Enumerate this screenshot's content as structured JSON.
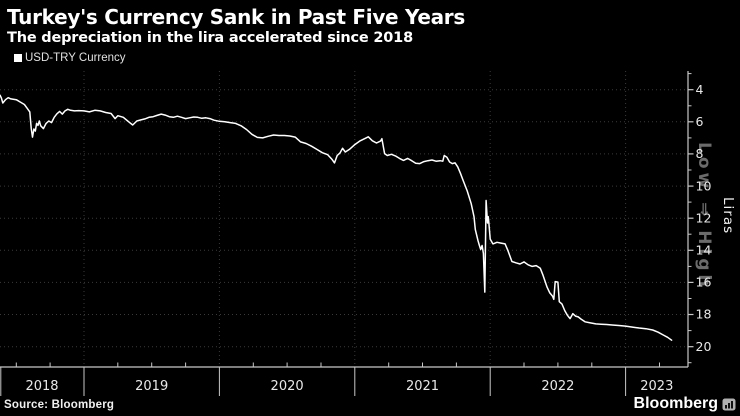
{
  "chart_data": {
    "type": "line",
    "title": "Turkey's Currency Sank in Past Five Years",
    "subtitle": "The depreciation in the lira accelerated since 2018",
    "grid": true,
    "legend_position": "top-left",
    "x_axis": {
      "year_labels": [
        "2018",
        "2019",
        "2020",
        "2021",
        "2022",
        "2023"
      ],
      "year_boundaries": [
        2019,
        2020,
        2021,
        2022,
        2023
      ],
      "range": [
        2018.38,
        2023.42
      ],
      "minor_tick_interval_years": 0.25
    },
    "y_axis": {
      "side": "right",
      "inverted": true,
      "unit": "Liras",
      "major_ticks": [
        4,
        6,
        8,
        10,
        12,
        14,
        16,
        18,
        20
      ],
      "minor_ticks": [
        3,
        5,
        7,
        9,
        11,
        13,
        15,
        17,
        19,
        21
      ],
      "display_range": [
        3,
        21.3
      ]
    },
    "series": [
      {
        "name": "USD-TRY Currency",
        "color": "#ffffff",
        "points": [
          [
            2018.38,
            4.35
          ],
          [
            2018.39,
            4.52
          ],
          [
            2018.4,
            4.83
          ],
          [
            2018.42,
            4.62
          ],
          [
            2018.44,
            4.5
          ],
          [
            2018.46,
            4.57
          ],
          [
            2018.5,
            4.62
          ],
          [
            2018.53,
            4.77
          ],
          [
            2018.56,
            4.92
          ],
          [
            2018.58,
            5.15
          ],
          [
            2018.6,
            5.38
          ],
          [
            2018.61,
            6.4
          ],
          [
            2018.62,
            6.95
          ],
          [
            2018.63,
            6.45
          ],
          [
            2018.64,
            6.58
          ],
          [
            2018.65,
            6.1
          ],
          [
            2018.66,
            6.22
          ],
          [
            2018.67,
            5.95
          ],
          [
            2018.68,
            6.25
          ],
          [
            2018.7,
            6.42
          ],
          [
            2018.72,
            6.1
          ],
          [
            2018.74,
            5.95
          ],
          [
            2018.76,
            6.05
          ],
          [
            2018.78,
            5.72
          ],
          [
            2018.8,
            5.5
          ],
          [
            2018.82,
            5.35
          ],
          [
            2018.84,
            5.52
          ],
          [
            2018.86,
            5.32
          ],
          [
            2018.88,
            5.22
          ],
          [
            2018.9,
            5.28
          ],
          [
            2018.93,
            5.32
          ],
          [
            2018.96,
            5.3
          ],
          [
            2019.0,
            5.32
          ],
          [
            2019.04,
            5.38
          ],
          [
            2019.08,
            5.28
          ],
          [
            2019.12,
            5.32
          ],
          [
            2019.16,
            5.42
          ],
          [
            2019.2,
            5.48
          ],
          [
            2019.23,
            5.8
          ],
          [
            2019.25,
            5.62
          ],
          [
            2019.29,
            5.72
          ],
          [
            2019.33,
            6.0
          ],
          [
            2019.36,
            6.2
          ],
          [
            2019.39,
            5.95
          ],
          [
            2019.42,
            5.88
          ],
          [
            2019.45,
            5.82
          ],
          [
            2019.48,
            5.72
          ],
          [
            2019.51,
            5.68
          ],
          [
            2019.54,
            5.6
          ],
          [
            2019.57,
            5.52
          ],
          [
            2019.6,
            5.58
          ],
          [
            2019.63,
            5.68
          ],
          [
            2019.66,
            5.72
          ],
          [
            2019.69,
            5.65
          ],
          [
            2019.72,
            5.72
          ],
          [
            2019.75,
            5.8
          ],
          [
            2019.78,
            5.75
          ],
          [
            2019.81,
            5.7
          ],
          [
            2019.84,
            5.72
          ],
          [
            2019.87,
            5.78
          ],
          [
            2019.9,
            5.75
          ],
          [
            2019.93,
            5.8
          ],
          [
            2019.96,
            5.9
          ],
          [
            2020.0,
            5.97
          ],
          [
            2020.04,
            6.0
          ],
          [
            2020.08,
            6.05
          ],
          [
            2020.12,
            6.1
          ],
          [
            2020.16,
            6.25
          ],
          [
            2020.2,
            6.48
          ],
          [
            2020.24,
            6.78
          ],
          [
            2020.28,
            6.97
          ],
          [
            2020.32,
            7.0
          ],
          [
            2020.36,
            6.9
          ],
          [
            2020.4,
            6.82
          ],
          [
            2020.44,
            6.85
          ],
          [
            2020.48,
            6.85
          ],
          [
            2020.52,
            6.88
          ],
          [
            2020.56,
            6.95
          ],
          [
            2020.6,
            7.25
          ],
          [
            2020.64,
            7.35
          ],
          [
            2020.68,
            7.52
          ],
          [
            2020.72,
            7.72
          ],
          [
            2020.76,
            7.92
          ],
          [
            2020.8,
            8.05
          ],
          [
            2020.83,
            8.32
          ],
          [
            2020.85,
            8.56
          ],
          [
            2020.87,
            8.1
          ],
          [
            2020.89,
            7.95
          ],
          [
            2020.91,
            7.65
          ],
          [
            2020.93,
            7.88
          ],
          [
            2020.96,
            7.72
          ],
          [
            2021.0,
            7.42
          ],
          [
            2021.04,
            7.18
          ],
          [
            2021.08,
            7.02
          ],
          [
            2021.1,
            6.93
          ],
          [
            2021.13,
            7.18
          ],
          [
            2021.16,
            7.32
          ],
          [
            2021.19,
            7.2
          ],
          [
            2021.2,
            7.05
          ],
          [
            2021.22,
            7.98
          ],
          [
            2021.24,
            8.1
          ],
          [
            2021.27,
            8.02
          ],
          [
            2021.3,
            8.12
          ],
          [
            2021.33,
            8.28
          ],
          [
            2021.36,
            8.4
          ],
          [
            2021.39,
            8.28
          ],
          [
            2021.42,
            8.42
          ],
          [
            2021.45,
            8.58
          ],
          [
            2021.48,
            8.6
          ],
          [
            2021.51,
            8.48
          ],
          [
            2021.54,
            8.42
          ],
          [
            2021.57,
            8.38
          ],
          [
            2021.6,
            8.45
          ],
          [
            2021.63,
            8.42
          ],
          [
            2021.65,
            8.45
          ],
          [
            2021.66,
            8.1
          ],
          [
            2021.68,
            8.2
          ],
          [
            2021.7,
            8.5
          ],
          [
            2021.72,
            8.6
          ],
          [
            2021.74,
            8.55
          ],
          [
            2021.76,
            8.8
          ],
          [
            2021.78,
            9.2
          ],
          [
            2021.8,
            9.65
          ],
          [
            2021.83,
            10.3
          ],
          [
            2021.86,
            11.1
          ],
          [
            2021.88,
            11.9
          ],
          [
            2021.89,
            12.7
          ],
          [
            2021.91,
            13.4
          ],
          [
            2021.92,
            13.7
          ],
          [
            2021.93,
            13.95
          ],
          [
            2021.94,
            13.7
          ],
          [
            2021.95,
            14.2
          ],
          [
            2021.96,
            16.6
          ],
          [
            2021.97,
            10.9
          ],
          [
            2021.98,
            12.3
          ],
          [
            2021.985,
            11.9
          ],
          [
            2021.99,
            12.25
          ],
          [
            2022.0,
            13.3
          ],
          [
            2022.02,
            13.6
          ],
          [
            2022.05,
            13.5
          ],
          [
            2022.08,
            13.55
          ],
          [
            2022.11,
            13.6
          ],
          [
            2022.13,
            14.0
          ],
          [
            2022.16,
            14.7
          ],
          [
            2022.19,
            14.78
          ],
          [
            2022.22,
            14.85
          ],
          [
            2022.25,
            14.72
          ],
          [
            2022.28,
            14.9
          ],
          [
            2022.31,
            15.0
          ],
          [
            2022.34,
            14.95
          ],
          [
            2022.37,
            15.12
          ],
          [
            2022.39,
            15.55
          ],
          [
            2022.42,
            16.3
          ],
          [
            2022.44,
            16.65
          ],
          [
            2022.46,
            16.85
          ],
          [
            2022.47,
            17.05
          ],
          [
            2022.48,
            15.95
          ],
          [
            2022.5,
            15.98
          ],
          [
            2022.51,
            17.2
          ],
          [
            2022.53,
            17.35
          ],
          [
            2022.55,
            17.75
          ],
          [
            2022.57,
            18.05
          ],
          [
            2022.59,
            18.25
          ],
          [
            2022.61,
            17.95
          ],
          [
            2022.63,
            18.1
          ],
          [
            2022.65,
            18.15
          ],
          [
            2022.67,
            18.28
          ],
          [
            2022.7,
            18.45
          ],
          [
            2022.74,
            18.52
          ],
          [
            2022.78,
            18.58
          ],
          [
            2022.82,
            18.6
          ],
          [
            2022.86,
            18.62
          ],
          [
            2022.9,
            18.65
          ],
          [
            2022.95,
            18.68
          ],
          [
            2023.0,
            18.72
          ],
          [
            2023.05,
            18.78
          ],
          [
            2023.1,
            18.84
          ],
          [
            2023.15,
            18.88
          ],
          [
            2023.2,
            18.96
          ],
          [
            2023.24,
            19.1
          ],
          [
            2023.28,
            19.28
          ],
          [
            2023.31,
            19.42
          ],
          [
            2023.34,
            19.6
          ]
        ]
      }
    ]
  },
  "legend": {
    "label": "USD-TRY Currency",
    "swatch": "white-square"
  },
  "right_axis": {
    "direction_label": "Low ⇒ High",
    "unit_label": "Liras"
  },
  "footer": {
    "source": "Source: Bloomberg",
    "brand": "Bloomberg",
    "brand_icon": "bar-chart-icon"
  },
  "colors": {
    "background": "#000000",
    "line": "#ffffff",
    "grid": "#3a3a3a",
    "axis": "#c8c8c8",
    "tick_text": "#e8e8e8",
    "watermark": "#6b6b6b",
    "title_text": "#ffffff"
  }
}
